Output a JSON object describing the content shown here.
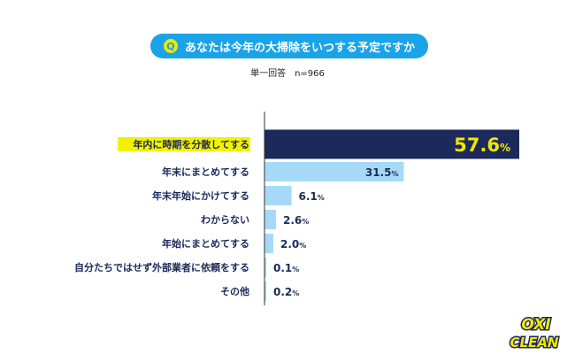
{
  "header": {
    "q_mark": "Q",
    "question": "あなたは今年の大掃除をいつする予定ですか",
    "subtitle": "単一回答　n=966"
  },
  "logo": {
    "line1": "OXI",
    "line2": "CLEAN"
  },
  "colors": {
    "accent": "#1aa3e8",
    "highlight_bar": "#1b2a5a",
    "bar": "#a6d9f7",
    "highlight_value": "#f2e600",
    "text": "#1b2a5a",
    "highlight_label_bg": "#f2f200"
  },
  "chart_data": {
    "type": "bar",
    "orientation": "horizontal",
    "unit": "%",
    "categories": [
      "年内に時期を分散してする",
      "年末にまとめてする",
      "年末年始にかけてする",
      "わからない",
      "年始にまとめてする",
      "自分たちではせず外部業者に依頼をする",
      "その他"
    ],
    "values": [
      57.6,
      31.5,
      6.1,
      2.6,
      2.0,
      0.1,
      0.2
    ],
    "value_labels": [
      "57.6",
      "31.5",
      "6.1",
      "2.6",
      "2.0",
      "0.1",
      "0.2"
    ],
    "highlight_index": 0,
    "xlim": [
      0,
      57.6
    ]
  }
}
